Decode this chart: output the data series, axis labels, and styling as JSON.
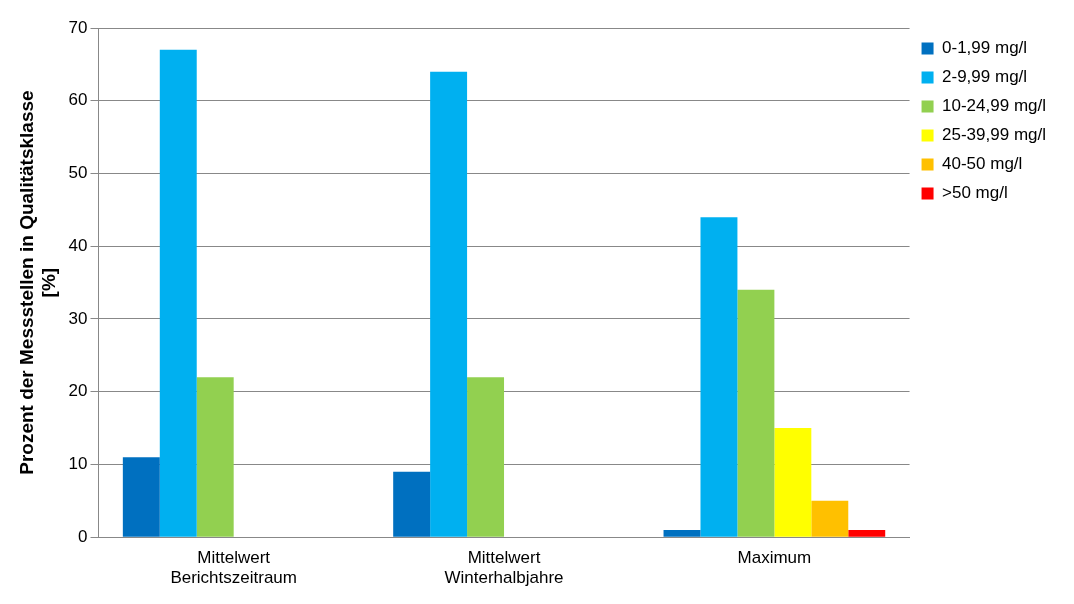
{
  "chart_data": {
    "type": "bar",
    "ylabel": "Prozent der Messstellen in Qualitätsklasse [%]",
    "categories": [
      "Mittelwert Berichtszeitraum",
      "Mittelwert Winterhalbjahre",
      "Maximum"
    ],
    "series": [
      {
        "name": "0-1,99 mg/l",
        "color": "#0070c0",
        "values": [
          11,
          9,
          1
        ]
      },
      {
        "name": "2-9,99 mg/l",
        "color": "#00b0f0",
        "values": [
          67,
          64,
          44
        ]
      },
      {
        "name": "10-24,99 mg/l",
        "color": "#92d050",
        "values": [
          22,
          22,
          34
        ]
      },
      {
        "name": "25-39,99 mg/l",
        "color": "#ffff00",
        "values": [
          0,
          0,
          15
        ]
      },
      {
        "name": "40-50 mg/l",
        "color": "#ffc000",
        "values": [
          0,
          0,
          5
        ]
      },
      {
        "name": ">50 mg/l",
        "color": "#ff0000",
        "values": [
          0,
          0,
          1
        ]
      }
    ],
    "ylim": [
      0,
      70
    ],
    "yticks": [
      0,
      10,
      20,
      30,
      40,
      50,
      60,
      70
    ],
    "grid": "y",
    "legend": "top right"
  }
}
